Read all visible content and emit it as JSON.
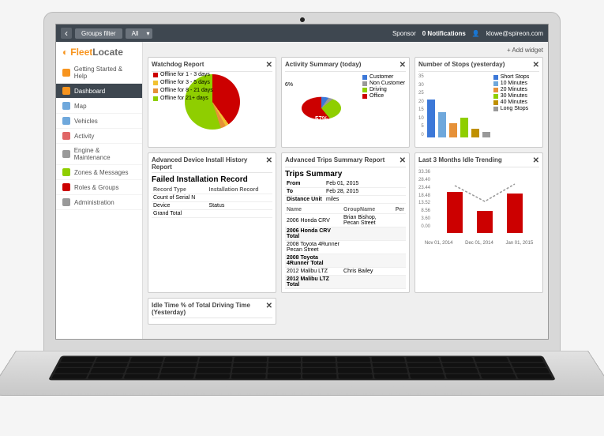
{
  "topbar": {
    "breadcrumb": "Groups filter",
    "filter": "All",
    "sponsor_label": "Sponsor",
    "notifications": "0 Notifications",
    "user": "klowe@spireon.com"
  },
  "logo": {
    "part1": "Fleet",
    "part2": "Locate"
  },
  "sidebar": {
    "items": [
      {
        "label": "Getting Started & Help",
        "icon_color": "#f7941e",
        "active": false
      },
      {
        "label": "Dashboard",
        "icon_color": "#f7941e",
        "active": true
      },
      {
        "label": "Map",
        "icon_color": "#6fa8dc",
        "active": false
      },
      {
        "label": "Vehicles",
        "icon_color": "#6fa8dc",
        "active": false
      },
      {
        "label": "Activity",
        "icon_color": "#e06666",
        "active": false
      },
      {
        "label": "Engine & Maintenance",
        "icon_color": "#999999",
        "active": false
      },
      {
        "label": "Zones & Messages",
        "icon_color": "#8fce00",
        "active": false
      },
      {
        "label": "Roles & Groups",
        "icon_color": "#cc0000",
        "active": false
      },
      {
        "label": "Administration",
        "icon_color": "#999999",
        "active": false
      }
    ]
  },
  "toolbar": {
    "add_widget": "+ Add widget"
  },
  "widgets": {
    "watchdog": {
      "title": "Watchdog Report",
      "type": "pie",
      "series": [
        {
          "label": "Offline for 1 - 3 days",
          "color": "#cc0000",
          "value": 40
        },
        {
          "label": "Offline for 3 - 5 days",
          "color": "#f1c232",
          "value": 2
        },
        {
          "label": "Offline for 8 - 21 days",
          "color": "#e69138",
          "value": 3
        },
        {
          "label": "Offline for 21+ days",
          "color": "#8fce00",
          "value": 55
        }
      ]
    },
    "activity": {
      "title": "Activity Summary (today)",
      "type": "pie",
      "center_label": "57%",
      "side_label": "6%",
      "series": [
        {
          "label": "Customer",
          "color": "#3c78d8",
          "value": 6
        },
        {
          "label": "Non Customer",
          "color": "#999999",
          "value": 4
        },
        {
          "label": "Driving",
          "color": "#8fce00",
          "value": 33
        },
        {
          "label": "Office",
          "color": "#cc0000",
          "value": 57
        }
      ]
    },
    "stops": {
      "title": "Number of Stops (yesterday)",
      "type": "bar",
      "ylim": [
        0,
        35
      ],
      "ytick_step": 5,
      "categories": [
        "",
        "",
        "",
        "",
        "",
        ""
      ],
      "values": [
        21,
        14,
        8,
        11,
        5,
        3
      ],
      "bar_colors": [
        "#3c78d8",
        "#6fa8dc",
        "#e69138",
        "#8fce00",
        "#bf9000",
        "#999999"
      ],
      "legend": [
        "Short Stops",
        "10 Minutes",
        "20 Minutes",
        "30 Minutes",
        "40 Minutes",
        "Long Stops"
      ]
    },
    "install": {
      "title": "Advanced Device Install History Report",
      "subtitle": "Failed Installation Record",
      "columns": [
        "Record Type",
        "Installation Record"
      ],
      "rows": [
        [
          "Count of Serial N",
          ""
        ],
        [
          "Device",
          "Status"
        ],
        [
          "Grand Total",
          ""
        ]
      ]
    },
    "trips": {
      "title": "Advanced Trips Summary Report",
      "subtitle": "Trips Summary",
      "meta": [
        [
          "From",
          "Feb 01, 2015"
        ],
        [
          "To",
          "Feb 28, 2015"
        ],
        [
          "Distance Unit",
          "miles"
        ]
      ],
      "columns": [
        "Name",
        "GroupName",
        "Per"
      ],
      "rows": [
        [
          "2006 Honda CRV",
          "Brian Bishop, Pecan Street",
          ""
        ],
        [
          "2006 Honda CRV Total",
          "",
          ""
        ],
        [
          "2008 Toyota 4Runner Pecan Street",
          "",
          ""
        ],
        [
          "2008 Toyota 4Runner Total",
          "",
          ""
        ],
        [
          "2012 Malibu LTZ",
          "Chris Bailey",
          ""
        ],
        [
          "2012 Malibu LTZ Total",
          "",
          ""
        ]
      ]
    },
    "idle_trend": {
      "title": "Last 3 Months Idle Trending",
      "type": "bar-line",
      "y_ticks": [
        "33.36",
        "28.40",
        "23.44",
        "18.48",
        "13.52",
        "8.56",
        "3.60",
        "0.00"
      ],
      "x_labels": [
        "Nov 01, 2014",
        "Dec 01, 2014",
        "Jan 01, 2015"
      ],
      "bar_values": [
        26,
        14,
        25
      ],
      "bar_color": "#cc0000",
      "line_values": [
        30,
        20,
        31
      ],
      "line_color": "#999999"
    },
    "idle_pct": {
      "title": "Idle Time % of Total Driving Time (Yesterday)"
    }
  }
}
